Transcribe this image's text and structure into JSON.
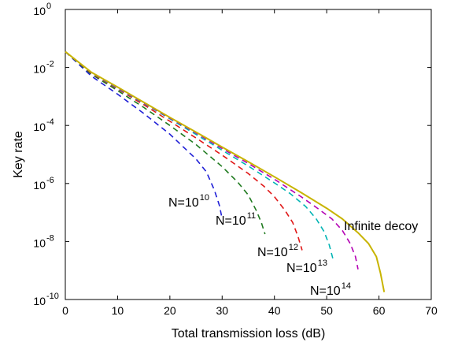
{
  "chart_data": {
    "type": "line",
    "title": "",
    "xlabel": "Total transmission loss (dB)",
    "ylabel": "Key rate",
    "xlim": [
      0,
      70
    ],
    "ylim": [
      1e-10,
      1
    ],
    "yscale": "log",
    "grid": false,
    "legend": "none",
    "x_ticks": [
      0,
      10,
      20,
      30,
      40,
      50,
      60,
      70
    ],
    "x_tick_labels": [
      "0",
      "10",
      "20",
      "30",
      "40",
      "50",
      "60",
      "70"
    ],
    "y_ticks": [
      1e-10,
      1e-08,
      1e-06,
      0.0001,
      0.01,
      1
    ],
    "y_tick_labels": [
      {
        "base": "10",
        "exp": "-10"
      },
      {
        "base": "10",
        "exp": "-8"
      },
      {
        "base": "10",
        "exp": "-6"
      },
      {
        "base": "10",
        "exp": "-4"
      },
      {
        "base": "10",
        "exp": "-2"
      },
      {
        "base": "10",
        "exp": "0"
      }
    ],
    "series": [
      {
        "label_base": "N=10",
        "label_exp": "10",
        "color": "#1f1fd6",
        "dash": true,
        "points": [
          [
            0,
            0.035
          ],
          [
            5,
            0.005
          ],
          [
            10,
            0.0012
          ],
          [
            15,
            0.00026
          ],
          [
            20,
            5e-05
          ],
          [
            25,
            7e-06
          ],
          [
            27,
            2.5e-06
          ],
          [
            28.5,
            6e-07
          ],
          [
            29.5,
            1.7e-07
          ],
          [
            30,
            6e-08
          ]
        ]
      },
      {
        "label_base": "N=10",
        "label_exp": "11",
        "color": "#1f7a1f",
        "dash": true,
        "points": [
          [
            0,
            0.035
          ],
          [
            5,
            0.0058
          ],
          [
            10,
            0.0016
          ],
          [
            15,
            0.00042
          ],
          [
            20,
            0.0001
          ],
          [
            25,
            2.2e-05
          ],
          [
            30,
            3.8e-06
          ],
          [
            33,
            1.1e-06
          ],
          [
            35,
            4e-07
          ],
          [
            36.5,
            1.2e-07
          ],
          [
            37.5,
            4.5e-08
          ],
          [
            38.2,
            1.8e-08
          ]
        ]
      },
      {
        "label_base": "N=10",
        "label_exp": "12",
        "color": "#e01818",
        "dash": true,
        "points": [
          [
            0,
            0.035
          ],
          [
            5,
            0.0063
          ],
          [
            10,
            0.0018
          ],
          [
            15,
            0.00052
          ],
          [
            20,
            0.00014
          ],
          [
            25,
            3.7e-05
          ],
          [
            30,
            9.5e-06
          ],
          [
            35,
            2.2e-06
          ],
          [
            38,
            8e-07
          ],
          [
            40,
            3.5e-07
          ],
          [
            42,
            1.2e-07
          ],
          [
            43.5,
            4.5e-08
          ],
          [
            44.5,
            1.5e-08
          ],
          [
            45.3,
            5e-09
          ]
        ]
      },
      {
        "label_base": "N=10",
        "label_exp": "13",
        "color": "#00b4b4",
        "dash": true,
        "points": [
          [
            0,
            0.035
          ],
          [
            5,
            0.0066
          ],
          [
            10,
            0.0019
          ],
          [
            15,
            0.00058
          ],
          [
            20,
            0.00017
          ],
          [
            25,
            4.9e-05
          ],
          [
            30,
            1.4e-05
          ],
          [
            35,
            4e-06
          ],
          [
            40,
            1.05e-06
          ],
          [
            43,
            4.5e-07
          ],
          [
            46,
            1.6e-07
          ],
          [
            48,
            6e-08
          ],
          [
            49.5,
            2.2e-08
          ],
          [
            50.5,
            7.5e-09
          ],
          [
            51.2,
            2.5e-09
          ]
        ]
      },
      {
        "label_base": "N=10",
        "label_exp": "14",
        "color": "#b400b4",
        "dash": true,
        "points": [
          [
            0,
            0.035
          ],
          [
            5,
            0.0067
          ],
          [
            10,
            0.002
          ],
          [
            15,
            0.0006
          ],
          [
            20,
            0.00018
          ],
          [
            25,
            5.5e-05
          ],
          [
            30,
            1.6e-05
          ],
          [
            35,
            4.9e-06
          ],
          [
            40,
            1.4e-06
          ],
          [
            45,
            3.6e-07
          ],
          [
            48,
            1.5e-07
          ],
          [
            51,
            6e-08
          ],
          [
            53,
            2.4e-08
          ],
          [
            54.5,
            8.5e-09
          ],
          [
            55.5,
            3e-09
          ],
          [
            56,
            1.1e-09
          ]
        ]
      },
      {
        "label_base": "Infinite decoy",
        "label_exp": "",
        "color": "#c8b400",
        "dash": false,
        "points": [
          [
            0,
            0.035
          ],
          [
            5,
            0.0068
          ],
          [
            10,
            0.0021
          ],
          [
            15,
            0.00063
          ],
          [
            20,
            0.00019
          ],
          [
            25,
            5.9e-05
          ],
          [
            30,
            1.8e-05
          ],
          [
            35,
            5.6e-06
          ],
          [
            40,
            1.7e-06
          ],
          [
            45,
            5e-07
          ],
          [
            50,
            1.4e-07
          ],
          [
            53,
            6e-08
          ],
          [
            56,
            2e-08
          ],
          [
            58,
            8.5e-09
          ],
          [
            59.5,
            3e-09
          ],
          [
            60.3,
            8e-10
          ],
          [
            61,
            1.8e-10
          ]
        ]
      }
    ]
  }
}
